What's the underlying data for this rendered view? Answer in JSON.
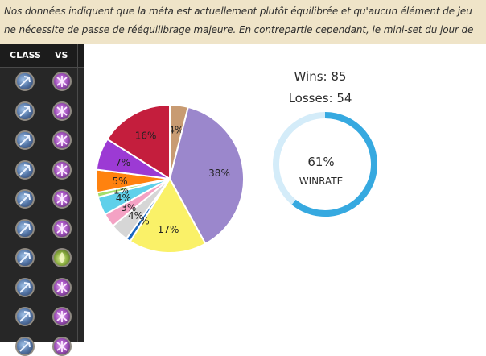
{
  "banner": {
    "line1": "Nos données indiquent que la méta est actuellement plutôt équilibrée et qu'aucun élément de jeu",
    "line2": "ne nécessite de passe de rééquilibrage majeure. En contrepartie cependant, le mini-set du jour de"
  },
  "table": {
    "col_class": "CLASS",
    "col_vs": "VS",
    "rows": [
      {
        "class_icon": "mage-class-icon",
        "vs_icon": "demon-hunter-class-icon"
      },
      {
        "class_icon": "mage-class-icon",
        "vs_icon": "demon-hunter-class-icon"
      },
      {
        "class_icon": "mage-class-icon",
        "vs_icon": "demon-hunter-class-icon"
      },
      {
        "class_icon": "mage-class-icon",
        "vs_icon": "demon-hunter-class-icon"
      },
      {
        "class_icon": "mage-class-icon",
        "vs_icon": "demon-hunter-class-icon"
      },
      {
        "class_icon": "mage-class-icon",
        "vs_icon": "demon-hunter-class-icon"
      },
      {
        "class_icon": "mage-class-icon",
        "vs_icon": "druid-class-icon"
      },
      {
        "class_icon": "mage-class-icon",
        "vs_icon": "demon-hunter-class-icon"
      },
      {
        "class_icon": "mage-class-icon",
        "vs_icon": "demon-hunter-class-icon"
      },
      {
        "class_icon": "mage-class-icon",
        "vs_icon": "demon-hunter-class-icon"
      }
    ]
  },
  "stats": {
    "wins": "Wins: 85",
    "losses": "Losses: 54"
  },
  "winrate": {
    "percent_label": "61%",
    "label": "WINRATE",
    "value": 0.61,
    "fill_color": "#36a9e0",
    "track_color": "#d4ecf9"
  },
  "chart_data": {
    "type": "pie",
    "slices": [
      {
        "label": "4%",
        "value": 4,
        "color": "#c89b72"
      },
      {
        "label": "38%",
        "value": 38,
        "color": "#9b87cc"
      },
      {
        "label": "17%",
        "value": 17,
        "color": "#faf168"
      },
      {
        "label": "1%",
        "value": 1,
        "color": "#1a67c2"
      },
      {
        "label": "4%",
        "value": 4,
        "color": "#d6d6d6"
      },
      {
        "label": "3%",
        "value": 3,
        "color": "#f4a2c4"
      },
      {
        "label": "4%",
        "value": 4,
        "color": "#5fd0ea"
      },
      {
        "label": "1%",
        "value": 1,
        "color": "#a4de6e"
      },
      {
        "label": "5%",
        "value": 5,
        "color": "#ff820f"
      },
      {
        "label": "7%",
        "value": 7,
        "color": "#9c3ad4"
      },
      {
        "label": "16%",
        "value": 16,
        "color": "#c41e3d"
      }
    ]
  }
}
